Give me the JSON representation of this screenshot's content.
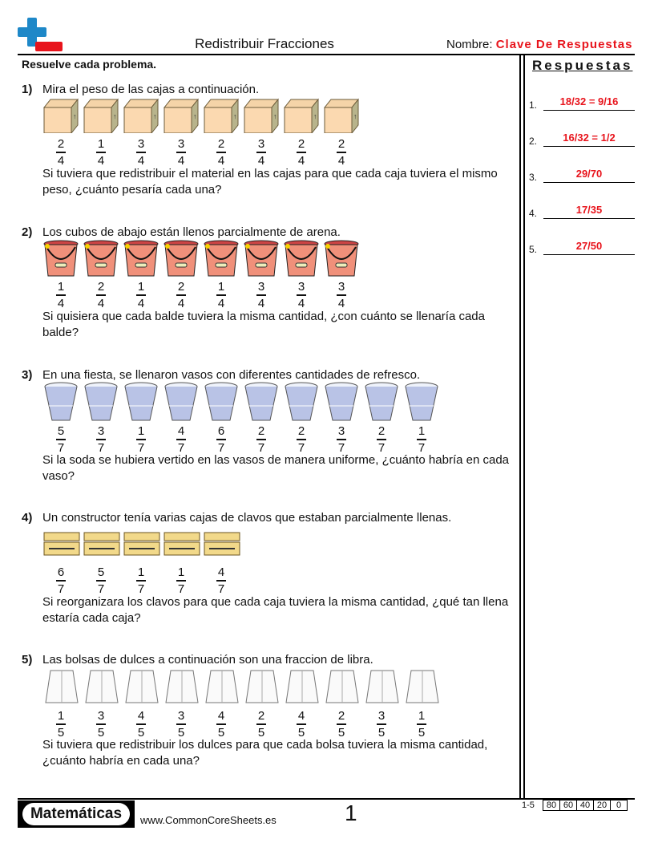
{
  "header": {
    "title": "Redistribuir Fracciones",
    "name_label": "Nombre:",
    "name_value": "Clave De Respuestas",
    "logo": "plus-minus-logo-icon"
  },
  "instructions": "Resuelve cada problema.",
  "problems": [
    {
      "num": "1)",
      "question": "Mira el peso de las cajas a continuación.",
      "icon": "box",
      "fractions": [
        [
          "2",
          "4"
        ],
        [
          "1",
          "4"
        ],
        [
          "3",
          "4"
        ],
        [
          "3",
          "4"
        ],
        [
          "2",
          "4"
        ],
        [
          "3",
          "4"
        ],
        [
          "2",
          "4"
        ],
        [
          "2",
          "4"
        ]
      ],
      "followup": "Si tuviera que redistribuir el material en las cajas para que cada caja tuviera el mismo peso, ¿cuánto pesaría cada una?"
    },
    {
      "num": "2)",
      "question": "Los cubos de abajo están llenos parcialmente de arena.",
      "icon": "bucket",
      "fractions": [
        [
          "1",
          "4"
        ],
        [
          "2",
          "4"
        ],
        [
          "1",
          "4"
        ],
        [
          "2",
          "4"
        ],
        [
          "1",
          "4"
        ],
        [
          "3",
          "4"
        ],
        [
          "3",
          "4"
        ],
        [
          "3",
          "4"
        ]
      ],
      "followup": "Si quisiera que cada balde tuviera la misma cantidad, ¿con cuánto se llenaría cada balde?"
    },
    {
      "num": "3)",
      "question": "En una fiesta, se llenaron vasos con diferentes cantidades de refresco.",
      "icon": "cup",
      "fractions": [
        [
          "5",
          "7"
        ],
        [
          "3",
          "7"
        ],
        [
          "1",
          "7"
        ],
        [
          "4",
          "7"
        ],
        [
          "6",
          "7"
        ],
        [
          "2",
          "7"
        ],
        [
          "2",
          "7"
        ],
        [
          "3",
          "7"
        ],
        [
          "2",
          "7"
        ],
        [
          "1",
          "7"
        ]
      ],
      "followup": "Si la soda se hubiera vertido en las vasos de manera uniforme, ¿cuánto habría en cada vaso?"
    },
    {
      "num": "4)",
      "question": "Un constructor tenía varias cajas de clavos que estaban parcialmente llenas.",
      "icon": "nail-box",
      "fractions": [
        [
          "6",
          "7"
        ],
        [
          "5",
          "7"
        ],
        [
          "1",
          "7"
        ],
        [
          "1",
          "7"
        ],
        [
          "4",
          "7"
        ]
      ],
      "followup": "Si reorganizara los clavos para que cada caja tuviera la misma cantidad, ¿qué tan llena estaría cada caja?"
    },
    {
      "num": "5)",
      "question": "Las bolsas de dulces a continuación son una fraccion de libra.",
      "icon": "bag",
      "fractions": [
        [
          "1",
          "5"
        ],
        [
          "3",
          "5"
        ],
        [
          "4",
          "5"
        ],
        [
          "3",
          "5"
        ],
        [
          "4",
          "5"
        ],
        [
          "2",
          "5"
        ],
        [
          "4",
          "5"
        ],
        [
          "2",
          "5"
        ],
        [
          "3",
          "5"
        ],
        [
          "1",
          "5"
        ]
      ],
      "followup": "Si tuviera que redistribuir los dulces para que cada bolsa tuviera la misma cantidad, ¿cuánto habría en cada una?"
    }
  ],
  "answers": {
    "title": "Respuestas",
    "items": [
      {
        "num": "1.",
        "value": "18/32 = 9/16"
      },
      {
        "num": "2.",
        "value": "16/32 = 1/2"
      },
      {
        "num": "3.",
        "value": "29/70"
      },
      {
        "num": "4.",
        "value": "17/35"
      },
      {
        "num": "5.",
        "value": "27/50"
      }
    ]
  },
  "footer": {
    "brand": "Matemáticas",
    "site": "www.CommonCoreSheets.es",
    "page": "1",
    "range": "1-5",
    "scores": [
      "80",
      "60",
      "40",
      "20",
      "0"
    ]
  },
  "colors": {
    "answer": "#e8141c"
  }
}
